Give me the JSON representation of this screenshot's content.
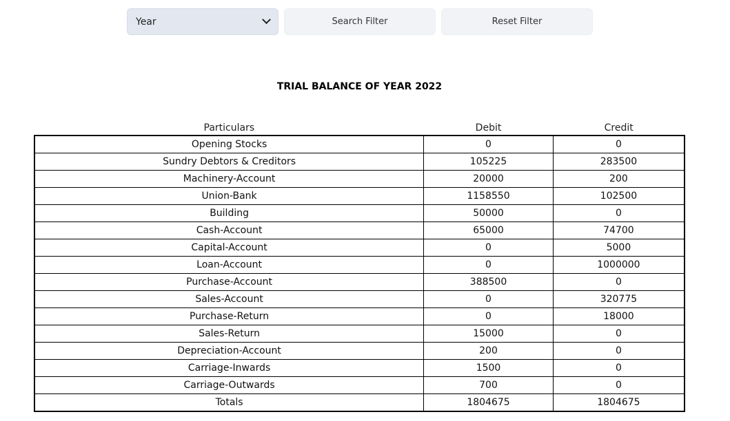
{
  "filters": {
    "year_select_value": "Year",
    "search_label": "Search Filter",
    "reset_label": "Reset Filter"
  },
  "report": {
    "title": "TRIAL BALANCE OF YEAR 2022"
  },
  "table": {
    "headers": [
      "Particulars",
      "Debit",
      "Credit"
    ],
    "rows": [
      [
        "Opening Stocks",
        "0",
        "0"
      ],
      [
        "Sundry Debtors & Creditors",
        "105225",
        "283500"
      ],
      [
        "Machinery-Account",
        "20000",
        "200"
      ],
      [
        "Union-Bank",
        "1158550",
        "102500"
      ],
      [
        "Building",
        "50000",
        "0"
      ],
      [
        "Cash-Account",
        "65000",
        "74700"
      ],
      [
        "Capital-Account",
        "0",
        "5000"
      ],
      [
        "Loan-Account",
        "0",
        "1000000"
      ],
      [
        "Purchase-Account",
        "388500",
        "0"
      ],
      [
        "Sales-Account",
        "0",
        "320775"
      ],
      [
        "Purchase-Return",
        "0",
        "18000"
      ],
      [
        "Sales-Return",
        "15000",
        "0"
      ],
      [
        "Depreciation-Account",
        "200",
        "0"
      ],
      [
        "Carriage-Inwards",
        "1500",
        "0"
      ],
      [
        "Carriage-Outwards",
        "700",
        "0"
      ],
      [
        "Totals",
        "1804675",
        "1804675"
      ]
    ]
  }
}
